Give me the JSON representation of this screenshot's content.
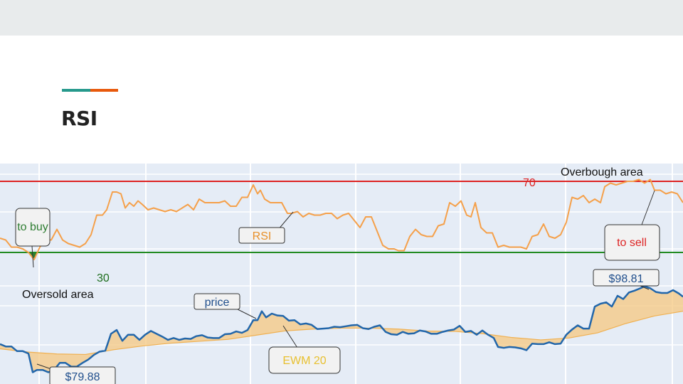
{
  "slide": {
    "title": "RSI",
    "accent_colors": [
      "#26998c",
      "#e8590c"
    ]
  },
  "chart_data": {
    "type": "line",
    "grid": true,
    "panels": [
      {
        "name": "rsi",
        "ylim": [
          10,
          80
        ],
        "series": [
          {
            "name": "RSI",
            "color": "#f5a04a",
            "x": [
              0,
              8,
              16,
              24,
              32,
              40,
              48,
              56,
              64,
              72,
              80,
              88,
              96,
              104,
              112,
              120,
              128,
              136,
              144,
              150,
              158,
              164,
              170,
              176,
              182,
              188,
              194,
              200,
              208,
              216,
              224,
              232,
              240,
              248,
              256,
              264,
              272,
              280,
              288,
              294,
              300,
              308,
              316,
              324,
              332,
              340,
              348,
              356,
              362,
              366,
              372,
              380,
              388,
              396,
              404,
              410,
              418,
              426,
              434,
              442,
              450,
              458,
              466,
              474,
              482,
              490,
              498,
              506,
              514,
              522,
              530,
              538,
              546,
              554,
              560,
              568,
              576,
              584,
              592,
              600,
              608,
              616,
              624,
              632,
              640,
              648,
              656,
              662,
              668,
              676,
              684,
              692,
              700,
              708,
              716,
              724,
              732,
              740,
              748,
              756,
              764,
              772,
              780,
              788,
              796,
              804,
              812,
              820,
              828,
              836,
              844,
              850,
              858,
              866,
              874,
              882,
              890,
              898,
              906,
              914,
              920,
              928,
              936,
              944,
              952,
              960
            ],
            "values": [
              38,
              37,
              33,
              33,
              32,
              30,
              26,
              33,
              37,
              37,
              43,
              37,
              35,
              34,
              33,
              35,
              40,
              51,
              51,
              54,
              64,
              64,
              63,
              55,
              58,
              56,
              59,
              57,
              54,
              55,
              54,
              53,
              54,
              53,
              55,
              57,
              54,
              60,
              58,
              58,
              58,
              58,
              59,
              56,
              56,
              61,
              61,
              68,
              63,
              65,
              60,
              58,
              58,
              58,
              52,
              52,
              53,
              50,
              52,
              51,
              51,
              52,
              52,
              49,
              51,
              52,
              48,
              44,
              50,
              50,
              42,
              34,
              32,
              32,
              31,
              31,
              39,
              43,
              40,
              39,
              39,
              45,
              46,
              58,
              56,
              59,
              51,
              50,
              58,
              44,
              41,
              41,
              33,
              34,
              33,
              33,
              33,
              32,
              39,
              40,
              46,
              39,
              38,
              40,
              47,
              61,
              60,
              62,
              58,
              60,
              58,
              67,
              69,
              68,
              69,
              70,
              70,
              71,
              69,
              71,
              65,
              65,
              63,
              64,
              63,
              58
            ]
          }
        ],
        "thresholds": [
          {
            "value": 70,
            "label": "70",
            "color": "#dd2222"
          },
          {
            "value": 30,
            "label": "30",
            "color": "#228b22"
          }
        ],
        "annotations": {
          "overbought_label": "Overbough area",
          "oversold_label": "Oversold area",
          "series_callout": "RSI",
          "buy_callout": "to buy",
          "sell_callout": "to sell"
        }
      },
      {
        "name": "price",
        "ylim": [
          78,
          103
        ],
        "series": [
          {
            "name": "price",
            "color": "#2266aa",
            "x": [
              0,
              8,
              16,
              24,
              32,
              40,
              46,
              52,
              60,
              68,
              76,
              84,
              92,
              100,
              108,
              116,
              124,
              132,
              140,
              148,
              156,
              164,
              172,
              180,
              188,
              196,
              204,
              212,
              220,
              228,
              236,
              244,
              252,
              260,
              268,
              276,
              284,
              292,
              300,
              308,
              316,
              324,
              332,
              340,
              348,
              356,
              362,
              368,
              374,
              382,
              390,
              398,
              406,
              414,
              422,
              430,
              438,
              446,
              454,
              462,
              470,
              478,
              486,
              494,
              502,
              510,
              518,
              526,
              534,
              542,
              550,
              558,
              566,
              574,
              582,
              590,
              598,
              606,
              614,
              622,
              630,
              638,
              646,
              654,
              662,
              670,
              678,
              686,
              694,
              700,
              708,
              716,
              724,
              732,
              740,
              748,
              756,
              764,
              772,
              780,
              788,
              796,
              804,
              812,
              820,
              828,
              836,
              844,
              852,
              860,
              868,
              876,
              884,
              892,
              900,
              906,
              914,
              922,
              930,
              938,
              946,
              954,
              960
            ],
            "values": [
              86.5,
              86,
              86,
              85,
              85,
              84.5,
              80.5,
              81,
              81,
              80.5,
              81,
              82.5,
              82.5,
              81.7,
              81.7,
              82.5,
              83.2,
              84.2,
              84.9,
              85.1,
              88.7,
              89.5,
              87.2,
              88.5,
              88.5,
              87.4,
              88.5,
              89.3,
              88.7,
              88.1,
              87.4,
              87.8,
              87.4,
              87.7,
              87.6,
              88.2,
              88.4,
              87.9,
              87.8,
              87.8,
              88.6,
              88.7,
              89.2,
              88.9,
              89.5,
              91.6,
              91.6,
              93.5,
              92.2,
              93,
              92.6,
              92.5,
              91.5,
              91.6,
              90.7,
              90.9,
              90.6,
              89.7,
              89.8,
              89.9,
              90.2,
              90.1,
              90.3,
              90.5,
              90.6,
              89.9,
              89.7,
              90.2,
              90.5,
              89.1,
              88.6,
              88.5,
              89.1,
              88.7,
              88.8,
              89.4,
              89.2,
              88.7,
              88.7,
              89.1,
              89.4,
              89.6,
              90.4,
              89.1,
              89.3,
              88.5,
              89.4,
              88.5,
              87.8,
              85.9,
              85.7,
              85.9,
              85.8,
              85.6,
              85.2,
              86.6,
              86.5,
              86.5,
              86.9,
              86.5,
              86.6,
              88.5,
              89.6,
              90.5,
              89.8,
              89.8,
              94.5,
              95.1,
              95.4,
              94.5,
              96.8,
              96.1,
              97.5,
              97.9,
              98.4,
              98.81,
              98.4,
              97.6,
              97.4,
              97.4,
              98,
              97.3,
              96.6
            ]
          },
          {
            "name": "EWM 20",
            "color": "#f5c880",
            "x": [
              0,
              40,
              80,
              120,
              160,
              200,
              240,
              280,
              320,
              360,
              400,
              440,
              480,
              520,
              560,
              600,
              640,
              680,
              720,
              760,
              800,
              840,
              880,
              920,
              960
            ],
            "values": [
              85.5,
              84.8,
              84.4,
              84.3,
              85.3,
              86.1,
              86.7,
              87.1,
              87.5,
              88.4,
              89.3,
              89.7,
              89.9,
              89.9,
              89.7,
              89.3,
              89.2,
              88.7,
              87.9,
              87.4,
              87.8,
              88.9,
              90.9,
              92.5,
              93.5
            ]
          }
        ],
        "annotations": {
          "min_label": "$79.88",
          "max_label": "$98.81",
          "price_callout": "price",
          "ewm_callout": "EWM 20"
        }
      }
    ]
  }
}
